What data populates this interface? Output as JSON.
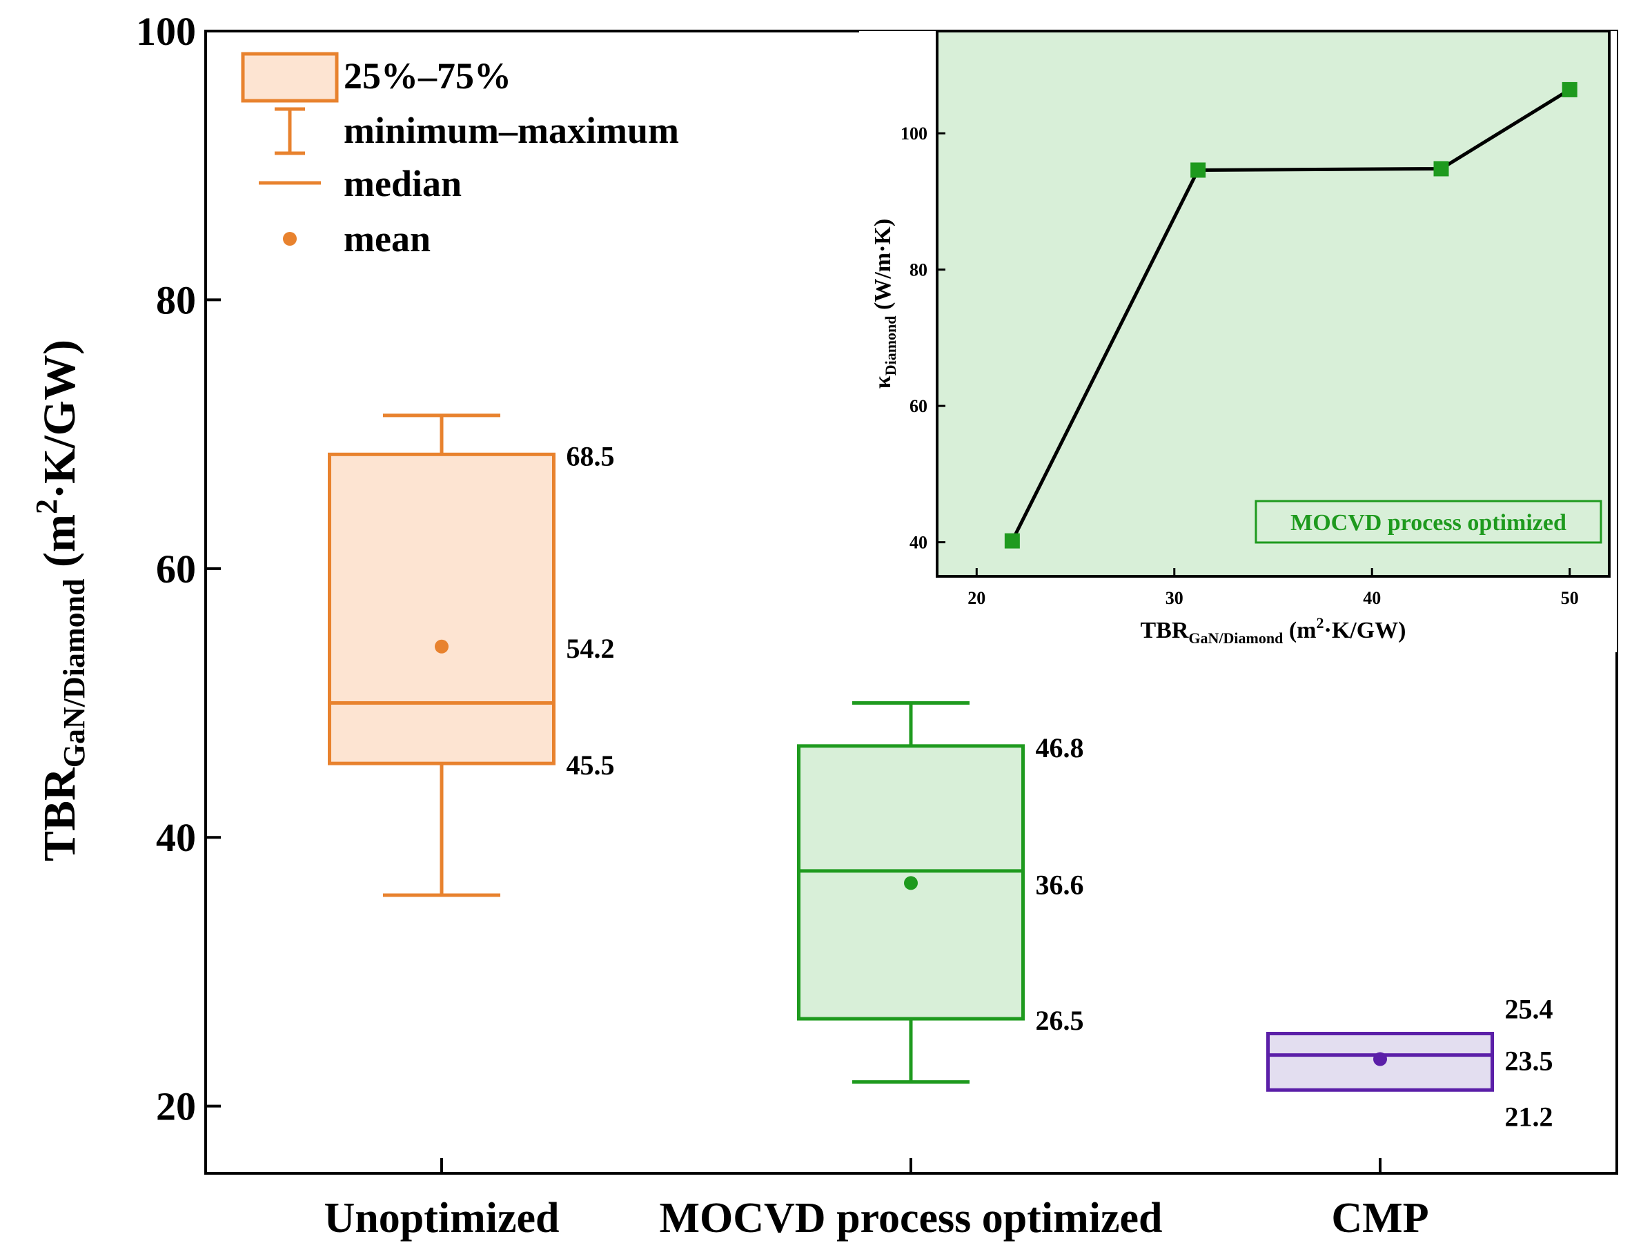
{
  "chart_data": [
    {
      "type": "box",
      "title": "",
      "xlabel": "",
      "ylabel": {
        "main": "TBR",
        "sub": "GaN/Diamond",
        "unit": " (m",
        "sup": "2",
        "tail": "·K/GW)"
      },
      "ylim": [
        15,
        100
      ],
      "yticks": [
        20,
        40,
        60,
        80,
        100
      ],
      "categories": [
        "Unoptimized",
        "MOCVD process optimized",
        "CMP"
      ],
      "boxes": [
        {
          "name": "Unoptimized",
          "color": "#e8822e",
          "fill": "#fde4d2",
          "q1": 45.5,
          "q3": 68.5,
          "median": 50,
          "mean": 54.2,
          "min": 35.7,
          "max": 71.4,
          "labels": [
            "68.5",
            "54.2",
            "45.5"
          ]
        },
        {
          "name": "MOCVD process optimized",
          "color": "#1e9a1e",
          "fill": "#d8efd8",
          "q1": 26.5,
          "q3": 46.8,
          "median": 37.5,
          "mean": 36.6,
          "min": 21.8,
          "max": 50.0,
          "labels": [
            "46.8",
            "36.6",
            "26.5"
          ]
        },
        {
          "name": "CMP",
          "color": "#5b1fa8",
          "fill": "#e3def0",
          "q1": 21.2,
          "q3": 25.4,
          "median": 23.8,
          "mean": 23.5,
          "min": 21.2,
          "max": 25.4,
          "labels": [
            "25.4",
            "23.5",
            "21.2"
          ]
        }
      ],
      "legend": {
        "position": "top-left",
        "entries": [
          "25%–75%",
          "minimum–maximum",
          "median",
          "mean"
        ]
      }
    },
    {
      "type": "line",
      "title": "",
      "xlabel": {
        "main": "TBR",
        "sub": "GaN/Diamond",
        "unit": " (m",
        "sup": "2",
        "tail": "·K/GW)"
      },
      "ylabel": {
        "main": "κ",
        "sub": "Diamond",
        "unit": " (W/m·K)"
      },
      "xlim": [
        18,
        52
      ],
      "ylim": [
        35,
        115
      ],
      "xticks": [
        20,
        30,
        40,
        50
      ],
      "yticks": [
        40,
        60,
        80,
        100
      ],
      "x": [
        21.8,
        31.2,
        43.5,
        50.0
      ],
      "y": [
        40.2,
        94.6,
        94.8,
        106.4
      ],
      "marker_color": "#1e9a1e",
      "line_color": "#000000",
      "background": "#d8efd8",
      "annotation": "MOCVD process optimized"
    }
  ]
}
